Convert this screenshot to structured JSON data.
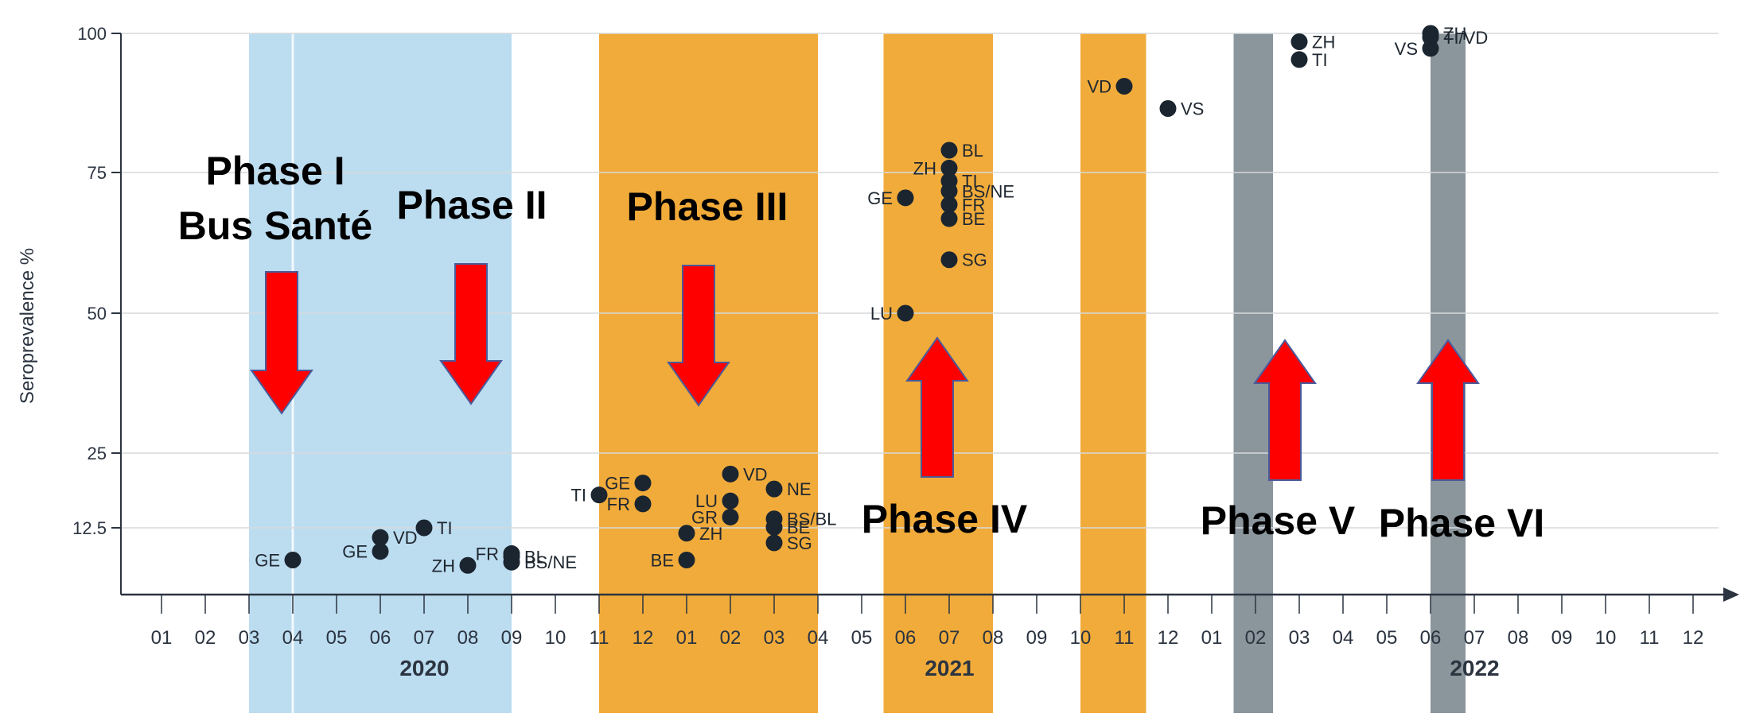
{
  "chart_data": {
    "type": "scatter",
    "ylabel": "Seroprevalence %",
    "yticks": [
      {
        "value": 12.5,
        "label": "12.5"
      },
      {
        "value": 25,
        "label": "25"
      },
      {
        "value": 50,
        "label": "50"
      },
      {
        "value": 75,
        "label": "75"
      },
      {
        "value": 100,
        "label": "100"
      }
    ],
    "x_months": [
      "01",
      "02",
      "03",
      "04",
      "05",
      "06",
      "07",
      "08",
      "09",
      "10",
      "11",
      "12",
      "01",
      "02",
      "03",
      "04",
      "05",
      "06",
      "07",
      "08",
      "09",
      "10",
      "11",
      "12",
      "01",
      "02",
      "03",
      "04",
      "05",
      "06",
      "07",
      "08",
      "09",
      "10",
      "11",
      "12"
    ],
    "years": [
      {
        "label": "2020",
        "month_index": 6.5
      },
      {
        "label": "2021",
        "month_index": 18.5
      },
      {
        "label": "2022",
        "month_index": 30.5
      }
    ],
    "grid": "horizontal",
    "colors": {
      "phase_blue": "#bcdcf0",
      "phase_orange": "#f1ab3a",
      "phase_gray": "#8b959c",
      "point": "#1a2530",
      "arrow": "#ff0000",
      "arrow_edge": "#4a5a9a",
      "axis": "#2b3440"
    },
    "phase_bands": [
      {
        "start": 2.0,
        "end": 8.0,
        "color": "phase_blue",
        "divider_at": 3.0
      },
      {
        "start": 10.0,
        "end": 15.0,
        "color": "phase_orange"
      },
      {
        "start": 16.5,
        "end": 19.0,
        "color": "phase_orange"
      },
      {
        "start": 21.0,
        "end": 22.5,
        "color": "phase_orange"
      },
      {
        "start": 24.5,
        "end": 25.4,
        "color": "phase_gray"
      },
      {
        "start": 29.0,
        "end": 29.8,
        "color": "phase_gray"
      }
    ],
    "phases": [
      {
        "lines": [
          "Phase I",
          "Bus Santé"
        ],
        "arrow": "down"
      },
      {
        "lines": [
          "Phase II"
        ],
        "arrow": "down"
      },
      {
        "lines": [
          "Phase III"
        ],
        "arrow": "down"
      },
      {
        "lines": [
          "Phase IV"
        ],
        "arrow": "up"
      },
      {
        "lines": [
          "Phase V"
        ],
        "arrow": "up"
      },
      {
        "lines": [
          "Phase VI"
        ],
        "arrow": "up"
      }
    ],
    "points": [
      {
        "label": "GE",
        "x": 3.0,
        "y": 9.5
      },
      {
        "label": "GE",
        "x": 5.0,
        "y": 10.3
      },
      {
        "label": "VD",
        "x": 5.0,
        "y": 11.6
      },
      {
        "label": "TI",
        "x": 6.0,
        "y": 12.5
      },
      {
        "label": "ZH",
        "x": 7.0,
        "y": 9.0
      },
      {
        "label": "FR",
        "x": 8.0,
        "y": 10.1
      },
      {
        "label": "BL",
        "x": 8.0,
        "y": 9.8
      },
      {
        "label": "BS/NE",
        "x": 8.0,
        "y": 9.3
      },
      {
        "label": "TI",
        "x": 10.0,
        "y": 18.0
      },
      {
        "label": "GE",
        "x": 11.0,
        "y": 20.0
      },
      {
        "label": "FR",
        "x": 11.0,
        "y": 16.5
      },
      {
        "label": "BE",
        "x": 12.0,
        "y": 9.5
      },
      {
        "label": "ZH",
        "x": 12.0,
        "y": 12.0
      },
      {
        "label": "VD",
        "x": 13.0,
        "y": 21.5
      },
      {
        "label": "LU",
        "x": 13.0,
        "y": 17.0
      },
      {
        "label": "GR",
        "x": 13.0,
        "y": 14.3
      },
      {
        "label": "NE",
        "x": 14.0,
        "y": 19.0
      },
      {
        "label": "BS/BL",
        "x": 14.0,
        "y": 14.0
      },
      {
        "label": "BE",
        "x": 14.0,
        "y": 12.6
      },
      {
        "label": "SG",
        "x": 14.0,
        "y": 11.1
      },
      {
        "label": "GE",
        "x": 17.0,
        "y": 70.5
      },
      {
        "label": "LU",
        "x": 17.0,
        "y": 50.0
      },
      {
        "label": "BL",
        "x": 18.0,
        "y": 79.0
      },
      {
        "label": "ZH",
        "x": 18.0,
        "y": 75.8
      },
      {
        "label": "TI",
        "x": 18.0,
        "y": 73.5
      },
      {
        "label": "BS/NE",
        "x": 18.0,
        "y": 71.7
      },
      {
        "label": "FR",
        "x": 18.0,
        "y": 69.3
      },
      {
        "label": "BE",
        "x": 18.0,
        "y": 66.8
      },
      {
        "label": "SG",
        "x": 18.0,
        "y": 59.5
      },
      {
        "label": "VD",
        "x": 22.0,
        "y": 90.5
      },
      {
        "label": "VS",
        "x": 23.0,
        "y": 86.5
      },
      {
        "label": "ZH",
        "x": 26.0,
        "y": 98.5
      },
      {
        "label": "TI",
        "x": 26.0,
        "y": 95.3
      },
      {
        "label": "ZH",
        "x": 29.0,
        "y": 100.0
      },
      {
        "label": "TI/VD",
        "x": 29.0,
        "y": 99.3
      },
      {
        "label": "VS",
        "x": 29.0,
        "y": 97.3
      }
    ]
  }
}
